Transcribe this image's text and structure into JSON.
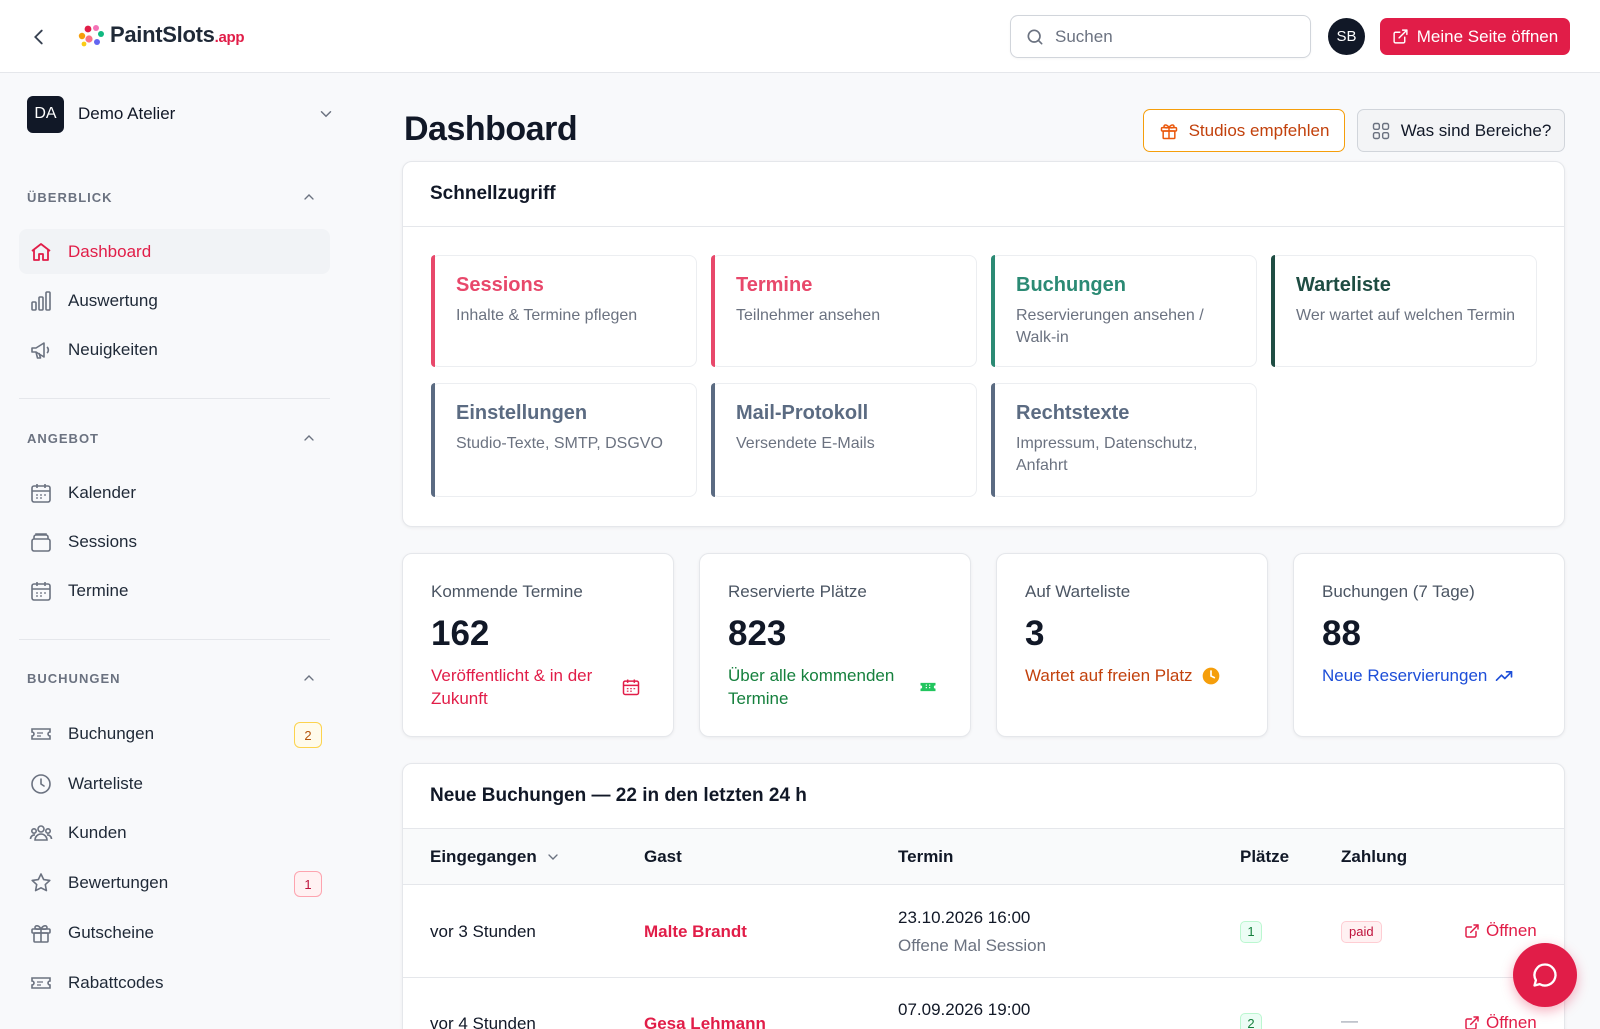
{
  "topbar": {
    "logo_main": "PaintSlots",
    "logo_suffix": ".app",
    "search_placeholder": "Suchen",
    "user_initials": "SB",
    "open_page_label": "Meine Seite öffnen"
  },
  "sidebar": {
    "workspace": {
      "initials": "DA",
      "name": "Demo Atelier"
    },
    "sections": [
      {
        "title": "ÜBERBLICK",
        "items": [
          {
            "label": "Dashboard",
            "icon": "home-icon",
            "active": true
          },
          {
            "label": "Auswertung",
            "icon": "bar-chart-icon"
          },
          {
            "label": "Neuigkeiten",
            "icon": "megaphone-icon"
          }
        ]
      },
      {
        "title": "ANGEBOT",
        "items": [
          {
            "label": "Kalender",
            "icon": "calendar-icon"
          },
          {
            "label": "Sessions",
            "icon": "layers-icon"
          },
          {
            "label": "Termine",
            "icon": "calendar-icon"
          }
        ]
      },
      {
        "title": "BUCHUNGEN",
        "items": [
          {
            "label": "Buchungen",
            "icon": "ticket-icon",
            "badge": "2"
          },
          {
            "label": "Warteliste",
            "icon": "clock-icon"
          },
          {
            "label": "Kunden",
            "icon": "users-icon"
          },
          {
            "label": "Bewertungen",
            "icon": "star-icon",
            "badge": "1"
          },
          {
            "label": "Gutscheine",
            "icon": "gift-icon"
          },
          {
            "label": "Rabattcodes",
            "icon": "ticket-icon"
          }
        ]
      }
    ]
  },
  "main": {
    "title": "Dashboard",
    "recommend_label": "Studios empfehlen",
    "areas_label": "Was sind Bereiche?",
    "quick_access": {
      "title": "Schnellzugriff",
      "tiles": [
        {
          "title": "Sessions",
          "subtitle": "Inhalte & Termine pflegen",
          "accent": "#e8486b",
          "title_color": "#e8486b"
        },
        {
          "title": "Termine",
          "subtitle": "Teilnehmer ansehen",
          "accent": "#e8486b",
          "title_color": "#e8486b"
        },
        {
          "title": "Buchungen",
          "subtitle": "Reservierungen ansehen / Walk-in",
          "accent": "#2b8a74",
          "title_color": "#2b8a74"
        },
        {
          "title": "Warteliste",
          "subtitle": "Wer wartet auf welchen Termin",
          "accent": "#1f4d43",
          "title_color": "#1f4d43"
        },
        {
          "title": "Einstellungen",
          "subtitle": "Studio-Texte, SMTP, DSGVO",
          "accent": "#5b6b82",
          "title_color": "#5b6b82"
        },
        {
          "title": "Mail-Protokoll",
          "subtitle": "Versendete E-Mails",
          "accent": "#5b6b82",
          "title_color": "#5b6b82"
        },
        {
          "title": "Rechtstexte",
          "subtitle": "Impressum, Datenschutz, Anfahrt",
          "accent": "#5b6b82",
          "title_color": "#5b6b82"
        }
      ]
    },
    "stats": [
      {
        "label": "Kommende Termine",
        "value": "162",
        "foot": "Veröffentlicht & in der Zukunft",
        "foot_color": "#e11d48",
        "icon": "calendar-icon"
      },
      {
        "label": "Reservierte Plätze",
        "value": "823",
        "foot": "Über alle kommenden Termine",
        "foot_color": "#15803d",
        "icon": "ticket-icon"
      },
      {
        "label": "Auf Warteliste",
        "value": "3",
        "foot": "Wartet auf freien Platz",
        "foot_color": "#c2410c",
        "icon": "clock-icon"
      },
      {
        "label": "Buchungen (7 Tage)",
        "value": "88",
        "foot": "Neue Reservierungen",
        "foot_color": "#1d4ed8",
        "icon": "trending-up-icon"
      }
    ],
    "new_bookings": {
      "title": "Neue Buchungen — 22 in den letzten 24 h",
      "columns": [
        "Eingegangen",
        "Gast",
        "Termin",
        "Plätze",
        "Zahlung"
      ],
      "open_label": "Öffnen",
      "rows": [
        {
          "received": "vor 3 Stunden",
          "guest": "Malte Brandt",
          "date": "23.10.2026 16:00",
          "session": "Offene Mal Session",
          "seats": "1",
          "payment": "paid"
        },
        {
          "received": "vor 4 Stunden",
          "guest": "Gesa Lehmann",
          "date": "07.09.2026 19:00",
          "session": "",
          "seats": "2",
          "payment": "—"
        }
      ]
    }
  }
}
